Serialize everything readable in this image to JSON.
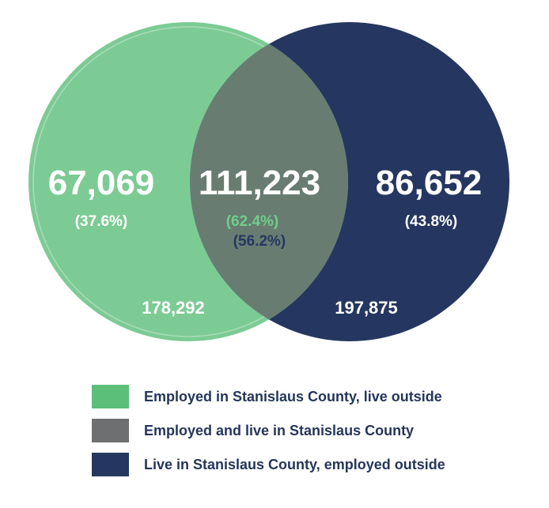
{
  "colors": {
    "green": "#7ccb94",
    "navy": "#253760",
    "overlap": "#687c72",
    "green_text": "#6fcf8a",
    "navy_text": "#253760",
    "legend_green": "#5bbf7a",
    "legend_gray": "#6e6f70",
    "legend_navy": "#253760"
  },
  "venn": {
    "left": {
      "value": "67,069",
      "percent": "(37.6%)",
      "total": "178,292"
    },
    "overlap": {
      "value": "111,223",
      "percent_green": "(62.4%)",
      "percent_navy": "(56.2%)"
    },
    "right": {
      "value": "86,652",
      "percent": "(43.8%)",
      "total": "197,875"
    }
  },
  "legend": [
    {
      "label": "Employed in Stanislaus County, live outside",
      "color": "#5bbf7a"
    },
    {
      "label": "Employed and live in Stanislaus County",
      "color": "#6e6f70"
    },
    {
      "label": "Live in Stanislaus County, employed outside",
      "color": "#253760"
    }
  ]
}
